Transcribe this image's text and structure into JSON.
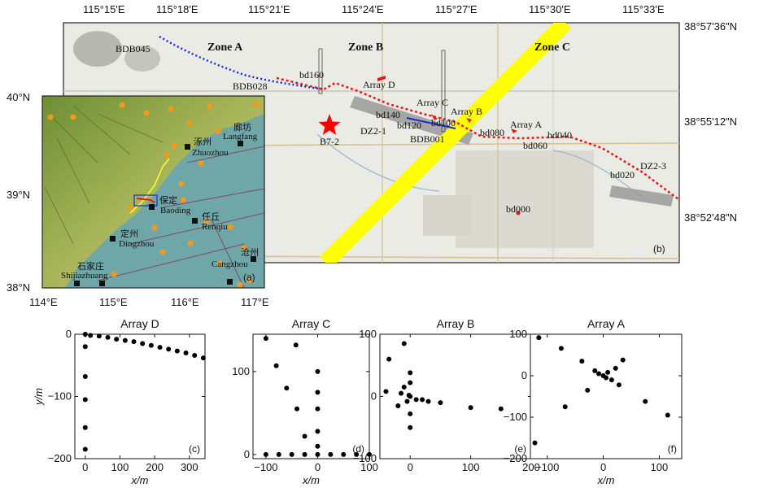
{
  "figure": {
    "map_b": {
      "panel_label": "(b)",
      "top_lon_ticks": [
        "115°15'E",
        "115°18'E",
        "115°21'E",
        "115°24'E",
        "115°27'E",
        "115°30'E",
        "115°33'E"
      ],
      "right_lat_ticks": [
        "38°57'36\"N",
        "38°55'12\"N",
        "38°52'48\"N"
      ],
      "zones": [
        "Zone A",
        "Zone B",
        "Zone C"
      ],
      "labels": {
        "bdb045": "BDB045",
        "bdb028": "BDB028",
        "bd160": "bd160",
        "array_d": "Array D",
        "array_c": "Array C",
        "array_b": "Array B",
        "array_a": "Array A",
        "bd140": "bd140",
        "bd120": "bd120",
        "bd100": "bd100",
        "bdb001": "BDB001",
        "bd080": "bd080",
        "bd060": "bd060",
        "bd040": "bd040",
        "bd020": "bd020",
        "dz2_1": "DZ2-1",
        "dz2_3": "DZ2-3",
        "b7_2": "B7-2",
        "bd000": "bd000"
      },
      "colors": {
        "fault_band": "#ffff00",
        "profile_south": "#e21a1a",
        "profile_north": "#1a2ad6",
        "star": "#ff0000",
        "dz_band": "#9a9a9a"
      }
    },
    "map_a": {
      "panel_label": "(a)",
      "left_lat_ticks": [
        "40°N",
        "39°N",
        "38°N"
      ],
      "bottom_lon_ticks": [
        "114°E",
        "115°E",
        "116°E",
        "117°E"
      ],
      "cities": [
        {
          "cn": "廊坊",
          "en": "Langfang"
        },
        {
          "cn": "涿州",
          "en": "Zhuozhou"
        },
        {
          "cn": "保定",
          "en": "Baoding"
        },
        {
          "cn": "任丘",
          "en": "Renqiu"
        },
        {
          "cn": "定州",
          "en": "Dingzhou"
        },
        {
          "cn": "沧州",
          "en": "Cangzhou"
        },
        {
          "cn": "石家庄",
          "en": "Shijiazhuang"
        }
      ],
      "colors": {
        "sea": "#6fa7a8",
        "quake": "#f39a1d",
        "mountain": "#7d9a3e",
        "fault": "#7a4a6a"
      }
    }
  },
  "chart_data": [
    {
      "type": "scatter",
      "title": "Array D",
      "panel_label": "(c)",
      "xlabel": "x/m",
      "ylabel": "y/m",
      "xlim": [
        -30,
        345
      ],
      "ylim": [
        -200,
        0
      ],
      "xticks": [
        "0",
        "100",
        "200",
        "300"
      ],
      "yticks": [
        "0",
        "−100",
        "−200"
      ],
      "points": [
        [
          0,
          0
        ],
        [
          15,
          -2
        ],
        [
          40,
          -3
        ],
        [
          65,
          -5
        ],
        [
          90,
          -8
        ],
        [
          115,
          -10
        ],
        [
          140,
          -12
        ],
        [
          165,
          -15
        ],
        [
          190,
          -18
        ],
        [
          215,
          -21
        ],
        [
          240,
          -24
        ],
        [
          265,
          -27
        ],
        [
          290,
          -30
        ],
        [
          315,
          -34
        ],
        [
          340,
          -38
        ],
        [
          0,
          -20
        ],
        [
          0,
          -68
        ],
        [
          0,
          -105
        ],
        [
          0,
          -150
        ],
        [
          0,
          -185
        ]
      ]
    },
    {
      "type": "scatter",
      "title": "Array C",
      "panel_label": "(d)",
      "xlabel": "x/m",
      "ylabel": "",
      "xlim": [
        -125,
        100
      ],
      "ylim": [
        -5,
        145
      ],
      "xticks": [
        "−100",
        "0",
        "100"
      ],
      "yticks": [
        "0",
        "100"
      ],
      "points": [
        [
          -100,
          140
        ],
        [
          -80,
          107
        ],
        [
          -60,
          80
        ],
        [
          -40,
          55
        ],
        [
          -42,
          132
        ],
        [
          -25,
          22
        ],
        [
          -100,
          0
        ],
        [
          -75,
          0
        ],
        [
          -50,
          0
        ],
        [
          -25,
          0
        ],
        [
          0,
          0
        ],
        [
          0,
          10
        ],
        [
          0,
          28
        ],
        [
          0,
          55
        ],
        [
          0,
          75
        ],
        [
          0,
          100
        ],
        [
          25,
          0
        ],
        [
          50,
          0
        ],
        [
          75,
          0
        ],
        [
          100,
          0
        ]
      ]
    },
    {
      "type": "scatter",
      "title": "Array B",
      "panel_label": "(e)",
      "xlabel": "",
      "ylabel": "",
      "xlim": [
        -50,
        200
      ],
      "ylim": [
        -100,
        100
      ],
      "xticks": [
        "0",
        "100",
        "200"
      ],
      "yticks": [
        "100",
        "0",
        "−100"
      ],
      "points": [
        [
          -40,
          8
        ],
        [
          -35,
          60
        ],
        [
          -20,
          -15
        ],
        [
          -15,
          5
        ],
        [
          -10,
          15
        ],
        [
          -10,
          85
        ],
        [
          -5,
          -8
        ],
        [
          -2,
          2
        ],
        [
          0,
          0
        ],
        [
          0,
          -28
        ],
        [
          0,
          -50
        ],
        [
          0,
          22
        ],
        [
          0,
          38
        ],
        [
          10,
          -5
        ],
        [
          20,
          -5
        ],
        [
          30,
          -8
        ],
        [
          50,
          -10
        ],
        [
          100,
          -18
        ],
        [
          150,
          -20
        ]
      ]
    },
    {
      "type": "scatter",
      "title": "Array A",
      "panel_label": "(f)",
      "xlabel": "x/m",
      "ylabel": "",
      "xlim": [
        -130,
        140
      ],
      "ylim": [
        -200,
        100
      ],
      "xticks": [
        "−100",
        "0",
        "100"
      ],
      "yticks": [
        "100",
        "0",
        "−100",
        "−200"
      ],
      "points": [
        [
          -115,
          92
        ],
        [
          -122,
          -162
        ],
        [
          -75,
          66
        ],
        [
          -68,
          -75
        ],
        [
          -38,
          35
        ],
        [
          -28,
          -35
        ],
        [
          -15,
          12
        ],
        [
          -8,
          5
        ],
        [
          0,
          0
        ],
        [
          5,
          -5
        ],
        [
          8,
          8
        ],
        [
          15,
          -10
        ],
        [
          22,
          18
        ],
        [
          28,
          -22
        ],
        [
          35,
          38
        ],
        [
          75,
          -62
        ],
        [
          115,
          -95
        ]
      ]
    }
  ]
}
